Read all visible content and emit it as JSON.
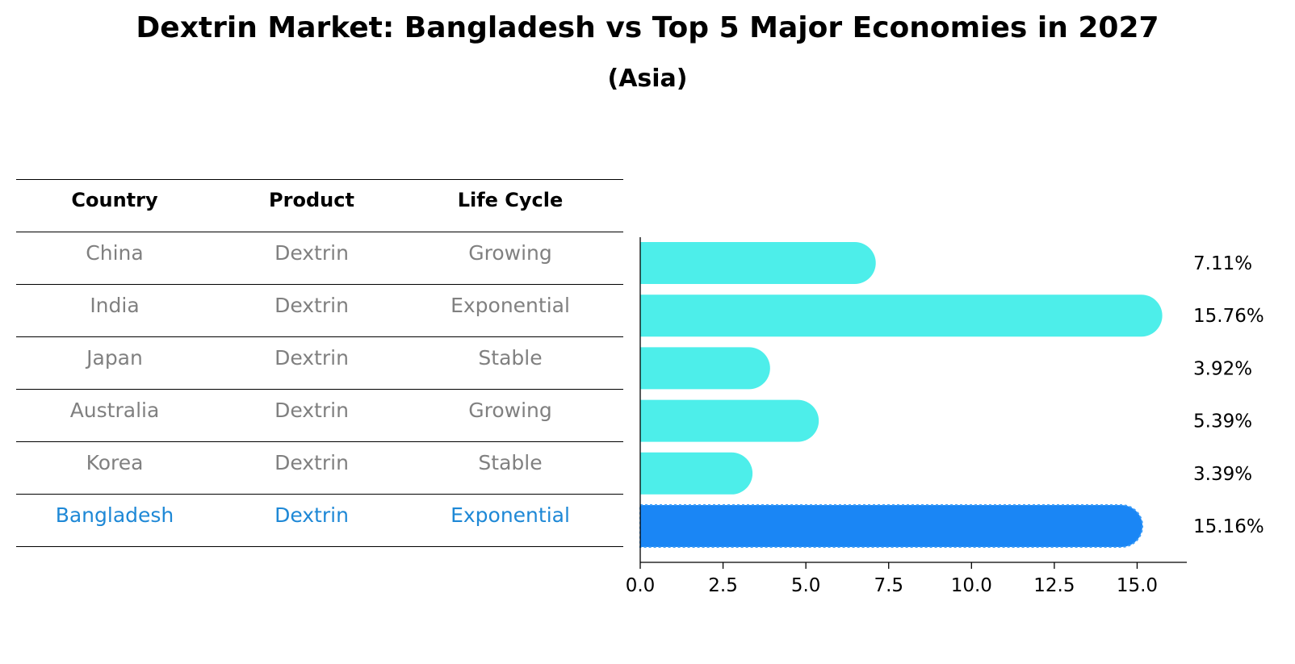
{
  "title": "Dextrin Market: Bangladesh vs Top 5 Major Economies in 2027",
  "subtitle": "(Asia)",
  "table": {
    "headers": [
      "Country",
      "Product",
      "Life Cycle"
    ],
    "rows": [
      [
        "China",
        "Dextrin",
        "Growing"
      ],
      [
        "India",
        "Dextrin",
        "Exponential"
      ],
      [
        "Japan",
        "Dextrin",
        "Stable"
      ],
      [
        "Australia",
        "Dextrin",
        "Growing"
      ],
      [
        "Korea",
        "Dextrin",
        "Stable"
      ],
      [
        "Bangladesh",
        "Dextrin",
        "Exponential"
      ]
    ],
    "highlight_row": 5
  },
  "colors": {
    "bar": "#4deeea",
    "highlight_bar": "#1a86f5",
    "muted_text": "#808080",
    "highlight_text": "#1e88d6"
  },
  "chart_data": {
    "type": "bar",
    "orientation": "horizontal",
    "categories": [
      "China",
      "India",
      "Japan",
      "Australia",
      "Korea",
      "Bangladesh"
    ],
    "values": [
      7.11,
      15.76,
      3.92,
      5.39,
      3.39,
      15.16
    ],
    "value_labels": [
      "7.11%",
      "15.76%",
      "3.92%",
      "5.39%",
      "3.39%",
      "15.16%"
    ],
    "highlight": "Bangladesh",
    "xlim": [
      0,
      16.5
    ],
    "xticks": [
      0.0,
      2.5,
      5.0,
      7.5,
      10.0,
      12.5,
      15.0
    ],
    "xtick_labels": [
      "0.0",
      "2.5",
      "5.0",
      "7.5",
      "10.0",
      "12.5",
      "15.0"
    ],
    "grid": false
  }
}
